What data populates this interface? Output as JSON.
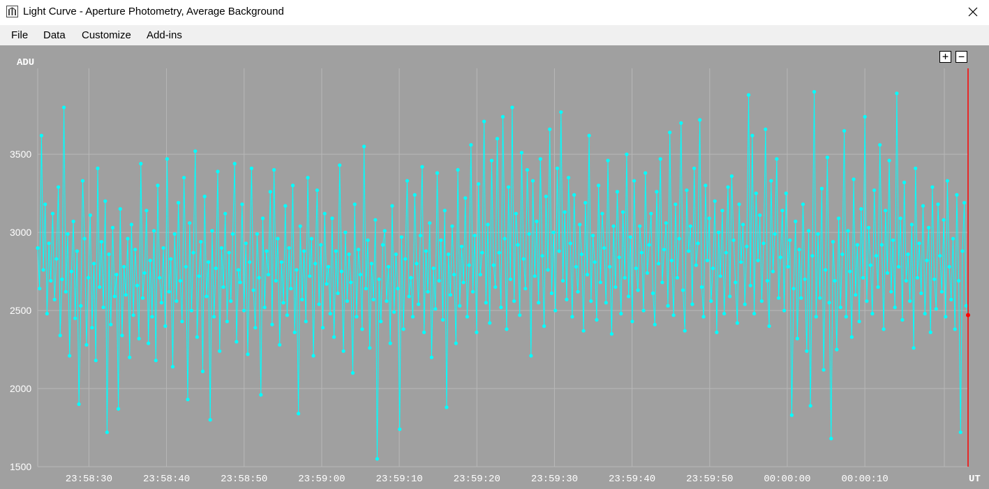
{
  "window": {
    "title": "Light Curve - Aperture Photometry, Average Background",
    "app_icon": "light-curve-app-icon",
    "close_icon": "close-icon"
  },
  "menu": {
    "items": [
      "File",
      "Data",
      "Customize",
      "Add-ins"
    ]
  },
  "zoom": {
    "plus_label": "+",
    "minus_label": "−"
  },
  "colors": {
    "plot_background": "#a0a0a0",
    "series": "#00ffff",
    "grid": "#b8b8b8",
    "cursor": "#ff0000",
    "axis_text": "#ffffff"
  },
  "chart_data": {
    "type": "scatter",
    "title": "",
    "xlabel": "UT",
    "ylabel": "ADU",
    "ylim": [
      1500,
      4050
    ],
    "xlim": [
      "23:58:23.4",
      "00:00:23.3"
    ],
    "y_ticks": [
      1500,
      2000,
      2500,
      3000,
      3500
    ],
    "x_ticks": [
      "23:58:30",
      "23:58:40",
      "23:58:50",
      "23:59:00",
      "23:59:10",
      "23:59:20",
      "23:59:30",
      "23:59:40",
      "23:59:50",
      "00:00:00",
      "00:00:10"
    ],
    "grid": true,
    "cursor": {
      "x": "00:00:23.3",
      "y": 2470
    },
    "series": [
      {
        "connected": true,
        "x_start": "23:58:23.4",
        "x_end": "00:00:23.3",
        "mean": 2740,
        "values": [
          2900,
          2640,
          3620,
          2760,
          3180,
          2480,
          2930,
          2690,
          3120,
          2570,
          2830,
          3290,
          2340,
          2700,
          3800,
          2620,
          2990,
          2210,
          2750,
          3070,
          2450,
          2880,
          1900,
          2530,
          3330,
          2960,
          2280,
          2710,
          3110,
          2390,
          2800,
          2180,
          3410,
          2650,
          2940,
          2520,
          3200,
          1720,
          2860,
          2410,
          3030,
          2590,
          2730,
          1870,
          3150,
          2340,
          2780,
          2600,
          2960,
          2200,
          3050,
          2470,
          2890,
          2660,
          2320,
          3440,
          2580,
          2740,
          3140,
          2290,
          2820,
          2460,
          3010,
          2180,
          3300,
          2710,
          2550,
          2900,
          2400,
          3470,
          2620,
          2830,
          2140,
          2990,
          2560,
          3190,
          2690,
          2430,
          3350,
          2780,
          1930,
          3060,
          2500,
          2870,
          3520,
          2330,
          2720,
          2940,
          2110,
          3230,
          2590,
          2810,
          1800,
          3010,
          2460,
          2770,
          3390,
          2240,
          2900,
          2650,
          3120,
          2430,
          2870,
          2560,
          2990,
          3440,
          2300,
          2760,
          2680,
          3180,
          2500,
          2930,
          2220,
          2810,
          3410,
          2630,
          2390,
          2990,
          2710,
          1960,
          3090,
          2520,
          2880,
          2730,
          3260,
          2410,
          3400,
          2690,
          2960,
          2280,
          2810,
          2550,
          3170,
          2470,
          2900,
          2640,
          3300,
          2360,
          2760,
          1840,
          3040,
          2570,
          2880,
          2430,
          3350,
          2720,
          2960,
          2210,
          2800,
          3270,
          2540,
          2920,
          2390,
          3120,
          2670,
          2780,
          2480,
          3090,
          2330,
          2880,
          2610,
          3430,
          2750,
          2240,
          3000,
          2560,
          2860,
          2680,
          2100,
          3180,
          2460,
          2890,
          2730,
          2380,
          3550,
          2640,
          2950,
          2260,
          2800,
          2570,
          3080,
          1550,
          2700,
          2430,
          2920,
          3010,
          2560,
          2780,
          2290,
          3170,
          2490,
          2860,
          2640,
          1740,
          2970,
          2380,
          2830,
          3330,
          2590,
          2710,
          2460,
          3240,
          2800,
          2540,
          2980,
          3420,
          2360,
          2880,
          2620,
          3060,
          2200,
          2770,
          2510,
          3380,
          2690,
          2950,
          2440,
          3140,
          1880,
          2860,
          2600,
          3040,
          2730,
          2290,
          3400,
          2530,
          2910,
          2680,
          3220,
          2460,
          2790,
          3560,
          2620,
          2980,
          2360,
          3310,
          2730,
          2870,
          3710,
          2550,
          3050,
          2420,
          3460,
          2790,
          2650,
          3600,
          2870,
          2520,
          3740,
          2960,
          2380,
          3290,
          2700,
          3800,
          2560,
          3120,
          2920,
          2470,
          3510,
          2830,
          2640,
          3400,
          2990,
          2210,
          3330,
          2720,
          3070,
          2550,
          3470,
          2850,
          2400,
          3230,
          2760,
          3660,
          2610,
          3000,
          2500,
          3410,
          2880,
          3770,
          2690,
          3130,
          2570,
          3350,
          2930,
          2460,
          3240,
          2780,
          2620,
          3050,
          2860,
          2370,
          3190,
          2730,
          3620,
          2560,
          2980,
          2810,
          2440,
          3300,
          2680,
          3120,
          2900,
          2550,
          3460,
          2780,
          2350,
          3040,
          2650,
          3260,
          2840,
          2480,
          3130,
          2710,
          3500,
          2590,
          2970,
          2430,
          3330,
          2770,
          2630,
          3040,
          2870,
          2500,
          3380,
          2740,
          2920,
          3120,
          2610,
          2410,
          3260,
          2800,
          3470,
          2680,
          2890,
          3060,
          2530,
          3640,
          2820,
          2470,
          3180,
          2710,
          2960,
          3700,
          2630,
          2370,
          3270,
          2880,
          3040,
          2540,
          3410,
          2790,
          2930,
          3720,
          2650,
          2460,
          3300,
          2820,
          3090,
          2560,
          2770,
          3200,
          2360,
          3000,
          2720,
          3140,
          2480,
          2870,
          3290,
          2590,
          3360,
          2950,
          2680,
          2420,
          3180,
          2810,
          3050,
          2540,
          2910,
          3880,
          2660,
          3620,
          2480,
          3250,
          2820,
          3110,
          2560,
          2930,
          3660,
          2690,
          2400,
          3330,
          2750,
          2990,
          3470,
          2580,
          2840,
          3140,
          2500,
          3250,
          2780,
          2950,
          1830,
          2640,
          3070,
          2320,
          2890,
          2580,
          3180,
          2700,
          2240,
          3010,
          1890,
          2850,
          3900,
          2460,
          2990,
          2580,
          3280,
          2120,
          2760,
          3480,
          2550,
          1680,
          2940,
          2690,
          2250,
          3090,
          2520,
          2860,
          3650,
          2460,
          3010,
          2750,
          2330,
          3340,
          2600,
          2920,
          2430,
          3150,
          2710,
          3740,
          2560,
          3030,
          2790,
          2480,
          3270,
          2850,
          2650,
          3560,
          2920,
          2380,
          3140,
          2740,
          3460,
          2620,
          2950,
          2520,
          3890,
          2780,
          3090,
          2440,
          3320,
          2690,
          2860,
          2560,
          3050,
          2260,
          3410,
          2710,
          2930,
          2610,
          3170,
          2480,
          2820,
          3030,
          2360,
          3290,
          2700,
          2510,
          3180,
          2850,
          2620,
          3080,
          2460,
          3330,
          2780,
          2570,
          2960,
          2380,
          3240,
          2690,
          1720,
          2880,
          3190,
          2530,
          2470
        ]
      }
    ]
  }
}
